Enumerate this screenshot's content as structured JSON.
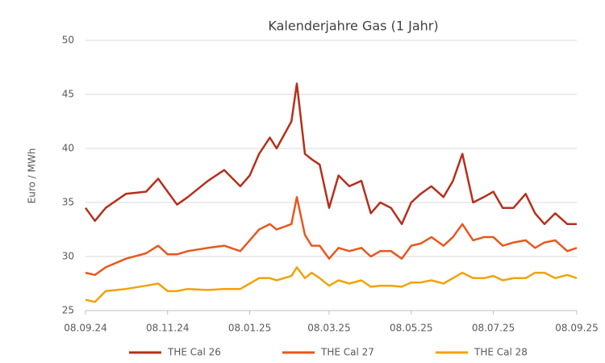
{
  "chart_data": {
    "type": "line",
    "title": "Kalenderjahre Gas (1 Jahr)",
    "y_label": "Euro / MWh",
    "x": [
      "08.09.24",
      "15.09.24",
      "23.09.24",
      "08.10.24",
      "23.10.24",
      "01.11.24",
      "08.11.24",
      "15.11.24",
      "23.11.24",
      "08.12.24",
      "20.12.24",
      "01.01.25",
      "08.01.25",
      "15.01.25",
      "23.01.25",
      "28.01.25",
      "08.02.25",
      "12.02.25",
      "18.02.25",
      "23.02.25",
      "01.03.25",
      "08.03.25",
      "15.03.25",
      "23.03.25",
      "01.04.25",
      "08.04.25",
      "15.04.25",
      "23.04.25",
      "01.05.25",
      "08.05.25",
      "15.05.25",
      "23.05.25",
      "01.06.25",
      "08.06.25",
      "15.06.25",
      "23.06.25",
      "01.07.25",
      "08.07.25",
      "15.07.25",
      "23.07.25",
      "01.08.25",
      "08.08.25",
      "15.08.25",
      "23.08.25",
      "01.09.25",
      "08.09.25"
    ],
    "series": [
      {
        "name": "THE Cal 26",
        "color": "#b5301c",
        "values": [
          34.5,
          33.3,
          34.5,
          35.8,
          36.0,
          37.2,
          36.0,
          34.8,
          35.5,
          37.0,
          38.0,
          36.5,
          37.5,
          39.5,
          41.0,
          40.0,
          42.5,
          46.0,
          39.5,
          39.0,
          38.5,
          34.5,
          37.5,
          36.5,
          37.0,
          34.0,
          35.0,
          34.5,
          33.0,
          35.0,
          35.8,
          36.5,
          35.5,
          37.0,
          39.5,
          35.0,
          35.5,
          36.0,
          34.5,
          34.5,
          35.8,
          34.0,
          33.0,
          34.0,
          33.0,
          33.0
        ]
      },
      {
        "name": "THE Cal 27",
        "color": "#e8571e",
        "values": [
          28.5,
          28.3,
          29.0,
          29.8,
          30.3,
          31.0,
          30.2,
          30.2,
          30.5,
          30.8,
          31.0,
          30.5,
          31.5,
          32.5,
          33.0,
          32.5,
          33.0,
          35.5,
          32.0,
          31.0,
          31.0,
          29.8,
          30.8,
          30.5,
          30.8,
          30.0,
          30.5,
          30.5,
          29.8,
          31.0,
          31.2,
          31.8,
          31.0,
          31.8,
          33.0,
          31.5,
          31.8,
          31.8,
          31.0,
          31.3,
          31.5,
          30.8,
          31.3,
          31.5,
          30.5,
          30.8
        ]
      },
      {
        "name": "THE Cal 28",
        "color": "#f0a30a",
        "values": [
          26.0,
          25.8,
          26.8,
          27.0,
          27.3,
          27.5,
          26.8,
          26.8,
          27.0,
          26.9,
          27.0,
          27.0,
          27.5,
          28.0,
          28.0,
          27.8,
          28.2,
          29.0,
          28.0,
          28.5,
          28.0,
          27.3,
          27.8,
          27.5,
          27.8,
          27.2,
          27.3,
          27.3,
          27.2,
          27.6,
          27.6,
          27.8,
          27.5,
          28.0,
          28.5,
          28.0,
          28.0,
          28.2,
          27.8,
          28.0,
          28.0,
          28.5,
          28.5,
          28.0,
          28.3,
          28.0
        ]
      }
    ],
    "xlim": [
      "08.09.24",
      "08.09.25"
    ],
    "xticks": [
      "08.09.24",
      "08.11.24",
      "08.01.25",
      "08.03.25",
      "08.05.25",
      "08.07.25",
      "08.09.25"
    ],
    "ylim": [
      25,
      50
    ],
    "yticks": [
      25,
      30,
      35,
      40,
      45,
      50
    ],
    "grid": true,
    "legend": "bottom"
  }
}
